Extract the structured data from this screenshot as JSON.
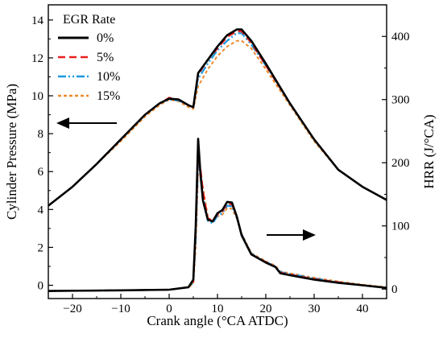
{
  "chart_data": {
    "type": "line",
    "title": "",
    "xlabel": "Crank angle (°CA ATDC)",
    "ylabel_left": "Cylinder Pressure (MPa)",
    "ylabel_right": "HRR (J/°CA)",
    "xlim": [
      -25,
      45
    ],
    "ylim_left": [
      -0.7,
      14.8
    ],
    "ylim_right": [
      -15,
      450
    ],
    "x_ticks": [
      -20,
      -10,
      0,
      10,
      20,
      30,
      40
    ],
    "x_tick_labels": [
      "−20",
      "−10",
      "0",
      "10",
      "20",
      "30",
      "40"
    ],
    "y_left_ticks": [
      0,
      2,
      4,
      6,
      8,
      10,
      12,
      14
    ],
    "y_right_ticks": [
      0,
      100,
      200,
      300,
      400
    ],
    "grid": false,
    "legend": {
      "title": "EGR Rate",
      "placement": "top-left",
      "entries": [
        "0%",
        "5%",
        "10%",
        "15%"
      ]
    },
    "colors": {
      "0%": "#000000",
      "5%": "#e8201e",
      "10%": "#1e9ae0",
      "15%": "#f08a2c"
    },
    "annotations": [
      {
        "type": "arrow",
        "direction": "left",
        "meaning": "pressure curves read on left axis"
      },
      {
        "type": "arrow",
        "direction": "right",
        "meaning": "HRR curves read on right axis"
      }
    ],
    "pressure_series": [
      {
        "name": "0%",
        "x": [
          -25,
          -20,
          -15,
          -10,
          -5,
          -2,
          0,
          2,
          4,
          5,
          6,
          8,
          10,
          12,
          14,
          15,
          17,
          20,
          25,
          30,
          35,
          40,
          45
        ],
        "y": [
          4.2,
          5.2,
          6.4,
          7.7,
          9.0,
          9.6,
          9.85,
          9.8,
          9.5,
          9.4,
          11.2,
          11.9,
          12.6,
          13.2,
          13.5,
          13.5,
          12.9,
          11.7,
          9.6,
          7.7,
          6.1,
          5.2,
          4.5
        ]
      },
      {
        "name": "5%",
        "x": [
          -25,
          -20,
          -15,
          -10,
          -5,
          -2,
          0,
          2,
          4,
          5,
          6,
          8,
          10,
          12,
          14,
          15,
          17,
          20,
          25,
          30,
          35,
          40,
          45
        ],
        "y": [
          4.2,
          5.2,
          6.4,
          7.7,
          9.0,
          9.6,
          9.9,
          9.8,
          9.5,
          9.4,
          11.1,
          11.9,
          12.5,
          13.1,
          13.4,
          13.4,
          12.8,
          11.6,
          9.6,
          7.7,
          6.1,
          5.2,
          4.5
        ]
      },
      {
        "name": "10%",
        "x": [
          -25,
          -20,
          -15,
          -10,
          -5,
          -2,
          0,
          2,
          4,
          5,
          6,
          8,
          10,
          12,
          14,
          15,
          17,
          20,
          25,
          30,
          35,
          40,
          45
        ],
        "y": [
          4.2,
          5.2,
          6.4,
          7.7,
          9.0,
          9.6,
          9.8,
          9.75,
          9.5,
          9.4,
          10.9,
          11.7,
          12.4,
          12.9,
          13.3,
          13.3,
          12.7,
          11.6,
          9.6,
          7.7,
          6.1,
          5.2,
          4.5
        ]
      },
      {
        "name": "15%",
        "x": [
          -25,
          -20,
          -15,
          -10,
          -5,
          -2,
          0,
          2,
          4,
          5,
          6,
          8,
          10,
          12,
          14,
          15,
          17,
          20,
          25,
          30,
          35,
          40,
          45
        ],
        "y": [
          4.2,
          5.2,
          6.4,
          7.6,
          8.9,
          9.5,
          9.8,
          9.7,
          9.4,
          9.3,
          10.5,
          11.4,
          12.1,
          12.6,
          12.9,
          12.9,
          12.5,
          11.4,
          9.5,
          7.6,
          6.1,
          5.2,
          4.5
        ]
      }
    ],
    "hrr_series": [
      {
        "name": "0%",
        "x": [
          -25,
          -10,
          0,
          4,
          5,
          5.5,
          6,
          6.5,
          7,
          8,
          9,
          10,
          11,
          12,
          13,
          14,
          15,
          17,
          20,
          22,
          23,
          25,
          30,
          35,
          40,
          45
        ],
        "y": [
          -3,
          -2,
          -1,
          3,
          15,
          100,
          238,
          180,
          140,
          110,
          107,
          120,
          125,
          138,
          137,
          115,
          85,
          55,
          42,
          35,
          25,
          22,
          15,
          10,
          6,
          2
        ]
      },
      {
        "name": "5%",
        "x": [
          -25,
          -10,
          0,
          4,
          5,
          5.5,
          6,
          6.5,
          7,
          8,
          9,
          10,
          11,
          12,
          13,
          14,
          15,
          17,
          20,
          22,
          23,
          25,
          30,
          35,
          40,
          45
        ],
        "y": [
          -3,
          -2,
          -1,
          3,
          12,
          90,
          215,
          190,
          155,
          112,
          108,
          118,
          123,
          135,
          134,
          114,
          86,
          55,
          43,
          35,
          26,
          23,
          16,
          11,
          6,
          2
        ]
      },
      {
        "name": "10%",
        "x": [
          -25,
          -10,
          0,
          4,
          5,
          5.5,
          6,
          6.5,
          7,
          8,
          9,
          10,
          11,
          12,
          13,
          14,
          15,
          17,
          20,
          22,
          23,
          25,
          30,
          35,
          40,
          45
        ],
        "y": [
          -3,
          -2,
          -1,
          3,
          10,
          80,
          200,
          185,
          150,
          108,
          104,
          116,
          120,
          132,
          131,
          113,
          87,
          56,
          43,
          36,
          27,
          24,
          17,
          11,
          6,
          2
        ]
      },
      {
        "name": "15%",
        "x": [
          -25,
          -10,
          0,
          4,
          5,
          5.5,
          6,
          6.5,
          7,
          8,
          9,
          10,
          11,
          12,
          13,
          14,
          15,
          17,
          20,
          22,
          23,
          25,
          30,
          35,
          40,
          45
        ],
        "y": [
          -3,
          -2,
          -1,
          3,
          8,
          65,
          185,
          188,
          160,
          115,
          106,
          115,
          118,
          128,
          127,
          112,
          88,
          57,
          44,
          37,
          28,
          25,
          18,
          12,
          7,
          3
        ]
      }
    ]
  }
}
